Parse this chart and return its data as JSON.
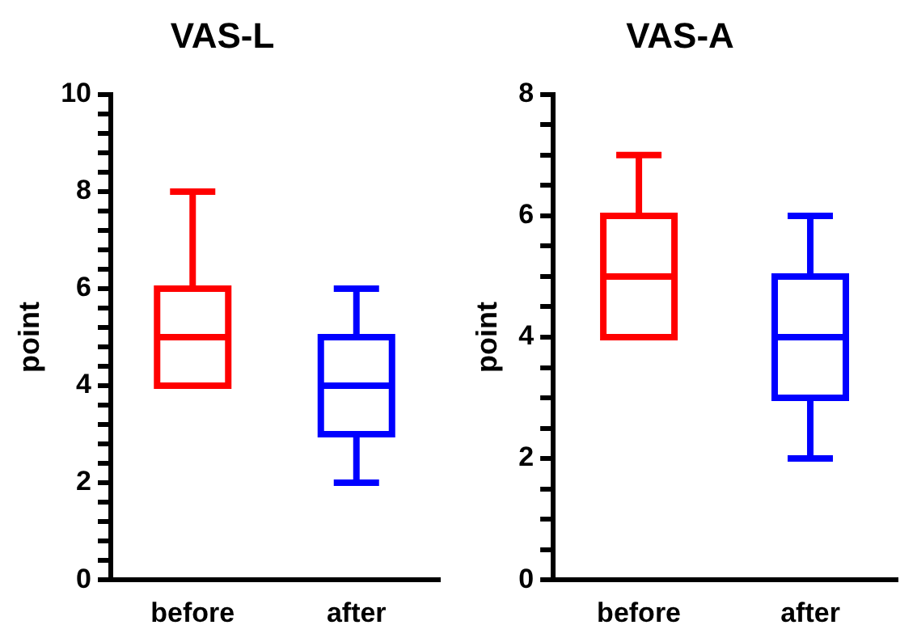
{
  "chart_data": [
    {
      "type": "box",
      "title": "VAS-L",
      "ylabel": "point",
      "categories": [
        "before",
        "after"
      ],
      "colors": [
        "#ff0000",
        "#0000ff"
      ],
      "boxes": [
        {
          "low": 4,
          "q1": 4,
          "median": 5,
          "q3": 6,
          "high": 8
        },
        {
          "low": 2,
          "q1": 3,
          "median": 4,
          "q3": 5,
          "high": 6
        }
      ],
      "ylim": [
        0,
        10
      ],
      "yticks": [
        0,
        {
          "value": 0.4,
          "label": null
        },
        {
          "value": 0.8,
          "label": null
        },
        {
          "value": 1.2,
          "label": null
        },
        {
          "value": 1.6,
          "label": null
        },
        2,
        {
          "value": 2.4,
          "label": null
        },
        {
          "value": 2.8,
          "label": null
        },
        {
          "value": 3.2,
          "label": null
        },
        {
          "value": 3.6,
          "label": null
        },
        4,
        {
          "value": 4.4,
          "label": null
        },
        {
          "value": 4.8,
          "label": null
        },
        {
          "value": 5.2,
          "label": null
        },
        {
          "value": 5.6,
          "label": null
        },
        6,
        {
          "value": 6.4,
          "label": null
        },
        {
          "value": 6.8,
          "label": null
        },
        {
          "value": 7.2,
          "label": null
        },
        {
          "value": 7.6,
          "label": null
        },
        8,
        {
          "value": 8.4,
          "label": null
        },
        {
          "value": 8.8,
          "label": null
        },
        {
          "value": 9.2,
          "label": null
        },
        {
          "value": 9.6,
          "label": null
        },
        10
      ],
      "grid": false,
      "legend": false
    },
    {
      "type": "box",
      "title": "VAS-A",
      "ylabel": "point",
      "categories": [
        "before",
        "after"
      ],
      "colors": [
        "#ff0000",
        "#0000ff"
      ],
      "boxes": [
        {
          "low": 4,
          "q1": 4,
          "median": 5,
          "q3": 6,
          "high": 7
        },
        {
          "low": 2,
          "q1": 3,
          "median": 4,
          "q3": 5,
          "high": 6
        }
      ],
      "ylim": [
        0,
        8
      ],
      "yticks": [
        0,
        {
          "value": 0.5,
          "label": null
        },
        {
          "value": 1,
          "label": null
        },
        {
          "value": 1.5,
          "label": null
        },
        2,
        {
          "value": 2.5,
          "label": null
        },
        {
          "value": 3,
          "label": null
        },
        {
          "value": 3.5,
          "label": null
        },
        4,
        {
          "value": 4.5,
          "label": null
        },
        {
          "value": 5,
          "label": null
        },
        {
          "value": 5.5,
          "label": null
        },
        6,
        {
          "value": 6.5,
          "label": null
        },
        {
          "value": 7,
          "label": null
        },
        {
          "value": 7.5,
          "label": null
        },
        8
      ],
      "grid": false,
      "legend": false
    }
  ]
}
